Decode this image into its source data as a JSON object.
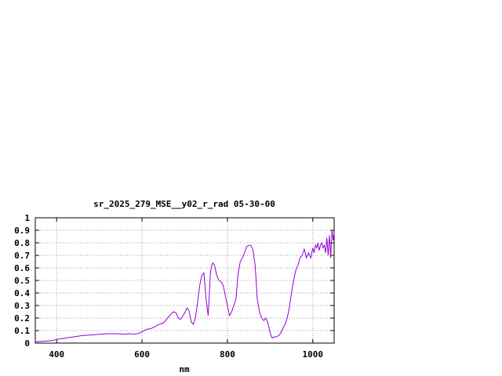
{
  "chart_data": {
    "type": "line",
    "title": "sr_2025_279_MSE__y02_r_rad 05-30-00",
    "xlabel": "nm",
    "ylabel": "",
    "xlim": [
      350,
      1050
    ],
    "ylim": [
      0,
      1
    ],
    "grid": true,
    "x_ticks": [
      400,
      600,
      800,
      1000
    ],
    "x_tick_labels": [
      "400",
      "600",
      "800",
      "1000"
    ],
    "y_ticks": [
      0,
      0.1,
      0.2,
      0.3,
      0.4,
      0.5,
      0.6,
      0.7,
      0.8,
      0.9,
      1
    ],
    "y_tick_labels": [
      "0",
      "0.1",
      "0.2",
      "0.3",
      "0.4",
      "0.5",
      "0.6",
      "0.7",
      "0.8",
      "0.9",
      "1"
    ],
    "series_color": "#9400d3",
    "series": [
      {
        "x": [
          350,
          370,
          390,
          400,
          420,
          440,
          460,
          480,
          500,
          520,
          540,
          560,
          570,
          580,
          590,
          600,
          610,
          620,
          630,
          640,
          650,
          660,
          670,
          675,
          680,
          685,
          690,
          700,
          705,
          710,
          715,
          720,
          725,
          730,
          735,
          740,
          745,
          750,
          755,
          760,
          763,
          766,
          770,
          775,
          780,
          785,
          790,
          800,
          805,
          810,
          815,
          820,
          825,
          830,
          835,
          840,
          845,
          850,
          855,
          860,
          865,
          870,
          875,
          880,
          885,
          890,
          895,
          900,
          905,
          910,
          915,
          920,
          925,
          930,
          935,
          940,
          945,
          950,
          955,
          960,
          965,
          970,
          975,
          980,
          985,
          990,
          995,
          1000,
          1003,
          1006,
          1009,
          1012,
          1015,
          1018,
          1021,
          1024,
          1027,
          1030,
          1033,
          1036,
          1039,
          1042,
          1045,
          1048,
          1050
        ],
        "y": [
          0.01,
          0.015,
          0.02,
          0.03,
          0.04,
          0.05,
          0.06,
          0.065,
          0.07,
          0.075,
          0.075,
          0.07,
          0.075,
          0.07,
          0.075,
          0.09,
          0.11,
          0.115,
          0.13,
          0.15,
          0.16,
          0.2,
          0.24,
          0.25,
          0.24,
          0.2,
          0.19,
          0.24,
          0.28,
          0.26,
          0.17,
          0.15,
          0.2,
          0.32,
          0.46,
          0.54,
          0.56,
          0.35,
          0.22,
          0.55,
          0.62,
          0.64,
          0.62,
          0.54,
          0.5,
          0.49,
          0.46,
          0.3,
          0.22,
          0.25,
          0.3,
          0.35,
          0.55,
          0.65,
          0.68,
          0.72,
          0.77,
          0.78,
          0.78,
          0.74,
          0.62,
          0.35,
          0.25,
          0.2,
          0.18,
          0.2,
          0.16,
          0.08,
          0.04,
          0.05,
          0.05,
          0.06,
          0.08,
          0.12,
          0.15,
          0.2,
          0.28,
          0.4,
          0.5,
          0.58,
          0.62,
          0.68,
          0.7,
          0.75,
          0.68,
          0.72,
          0.68,
          0.76,
          0.72,
          0.78,
          0.76,
          0.8,
          0.74,
          0.78,
          0.8,
          0.76,
          0.78,
          0.72,
          0.84,
          0.7,
          0.86,
          0.68,
          0.9,
          0.82,
          0.88
        ]
      }
    ]
  }
}
